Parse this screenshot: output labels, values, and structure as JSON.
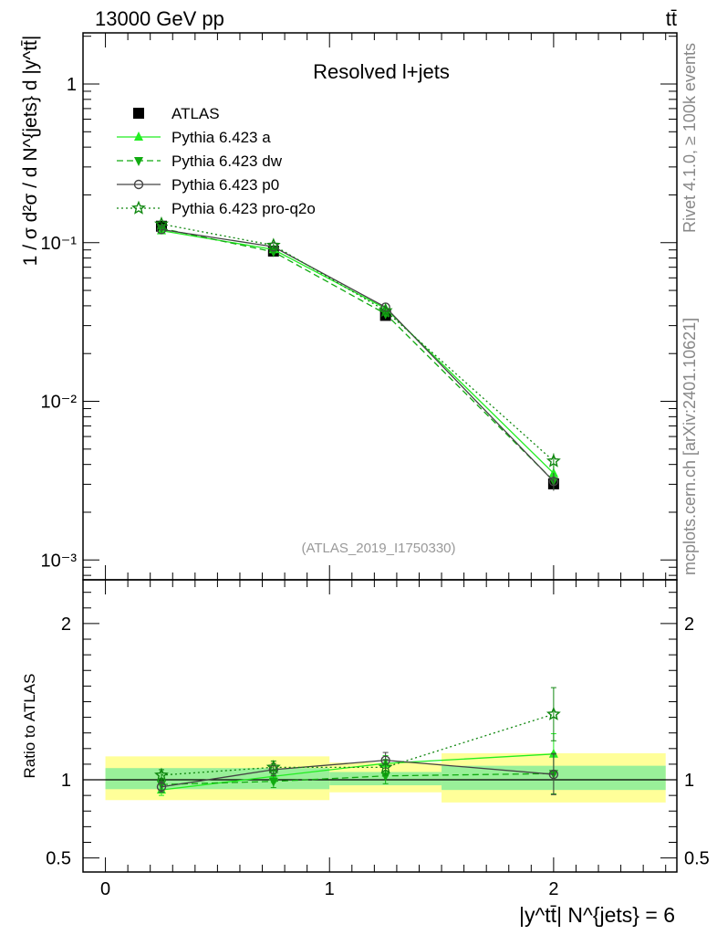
{
  "header": {
    "process": "13000 GeV pp",
    "final_state": "tt̄",
    "rivet_note": "Rivet 4.1.0, ≥ 100k events",
    "mcplots_note": "mcplots.cern.ch [arXiv:2401.10621]",
    "analysis_id": "(ATLAS_2019_I1750330)"
  },
  "chart_data": [
    {
      "type": "line",
      "panel": "main",
      "title": "Resolved l+jets",
      "xlabel": "|y^tt̄| N^{jets} = 6",
      "ylabel": "1 / σ d²σ / d N^{jets} d |y^tt̄|",
      "yscale": "log",
      "xlim": [
        -0.1,
        2.55
      ],
      "ylim": [
        0.00075,
        2.1
      ],
      "x": [
        0.25,
        0.75,
        1.25,
        2.0
      ],
      "x_bins": [
        [
          0,
          0.5
        ],
        [
          0.5,
          1.0
        ],
        [
          1.0,
          1.5
        ],
        [
          1.5,
          2.5
        ]
      ],
      "y_ticks": [
        {
          "value": 0.001,
          "label": "10⁻³"
        },
        {
          "value": 0.01,
          "label": "10⁻²"
        },
        {
          "value": 0.1,
          "label": "10⁻¹"
        },
        {
          "value": 1,
          "label": "1"
        }
      ],
      "legend_position": "top-left",
      "series": [
        {
          "name": "ATLAS",
          "color": "#000000",
          "marker": "square",
          "line": "none",
          "values": [
            0.127,
            0.0885,
            0.0348,
            0.00302
          ]
        },
        {
          "name": "Pythia 6.423 a",
          "color": "#22ee22",
          "marker": "triangle-up",
          "line": "solid",
          "values": [
            0.119,
            0.0905,
            0.0385,
            0.00352
          ],
          "errors": [
            0.004,
            0.0025,
            0.0012,
            0.0004
          ]
        },
        {
          "name": "Pythia 6.423 dw",
          "color": "#11aa11",
          "marker": "triangle-down",
          "line": "dashed",
          "values": [
            0.123,
            0.0875,
            0.0356,
            0.00315
          ],
          "errors": [
            0.004,
            0.0025,
            0.0012,
            0.0004
          ]
        },
        {
          "name": "Pythia 6.423 p0",
          "color": "#444444",
          "marker": "circle-open",
          "line": "solid",
          "values": [
            0.121,
            0.0942,
            0.0392,
            0.00313
          ],
          "errors": [
            0.004,
            0.0025,
            0.0012,
            0.0004
          ]
        },
        {
          "name": "Pythia 6.423 pro-q2o",
          "color": "#118811",
          "marker": "star-open",
          "line": "dotted",
          "values": [
            0.131,
            0.0962,
            0.0372,
            0.0042
          ],
          "errors": [
            0.004,
            0.0025,
            0.0012,
            0.0005
          ]
        }
      ]
    },
    {
      "type": "line",
      "panel": "ratio",
      "ylabel": "Ratio to ATLAS",
      "xlim": [
        -0.1,
        2.55
      ],
      "ylim": [
        0.41,
        2.28
      ],
      "x_ticks": [
        0,
        1,
        2
      ],
      "y_ticks": [
        0.5,
        1,
        2
      ],
      "reference": 1.0,
      "bands": [
        {
          "x0": 0.0,
          "x1": 1.0,
          "inner": [
            0.94,
            1.075
          ],
          "outer": [
            0.87,
            1.15
          ]
        },
        {
          "x0": 1.0,
          "x1": 1.5,
          "inner": [
            0.965,
            1.05
          ],
          "outer": [
            0.92,
            1.11
          ]
        },
        {
          "x0": 1.5,
          "x1": 2.5,
          "inner": [
            0.935,
            1.09
          ],
          "outer": [
            0.855,
            1.17
          ]
        }
      ],
      "band_colors": {
        "inner": "#99f099",
        "outer": "#ffff99"
      },
      "x": [
        0.25,
        0.75,
        1.25,
        2.0
      ],
      "series": [
        {
          "name": "Pythia 6.423 a",
          "color": "#22ee22",
          "marker": "triangle-up",
          "line": "solid",
          "values": [
            0.935,
            1.022,
            1.105,
            1.165
          ],
          "errors": [
            0.035,
            0.04,
            0.05,
            0.13
          ]
        },
        {
          "name": "Pythia 6.423 dw",
          "color": "#11aa11",
          "marker": "triangle-down",
          "line": "dashed",
          "values": [
            0.97,
            0.99,
            1.025,
            1.04
          ],
          "errors": [
            0.035,
            0.04,
            0.05,
            0.13
          ]
        },
        {
          "name": "Pythia 6.423 p0",
          "color": "#444444",
          "marker": "circle-open",
          "line": "solid",
          "values": [
            0.955,
            1.065,
            1.125,
            1.035
          ],
          "errors": [
            0.035,
            0.04,
            0.05,
            0.13
          ]
        },
        {
          "name": "Pythia 6.423 pro-q2o",
          "color": "#118811",
          "marker": "star-open",
          "line": "dotted",
          "values": [
            1.03,
            1.08,
            1.08,
            1.42
          ],
          "errors": [
            0.035,
            0.04,
            0.05,
            0.17
          ]
        }
      ]
    }
  ]
}
